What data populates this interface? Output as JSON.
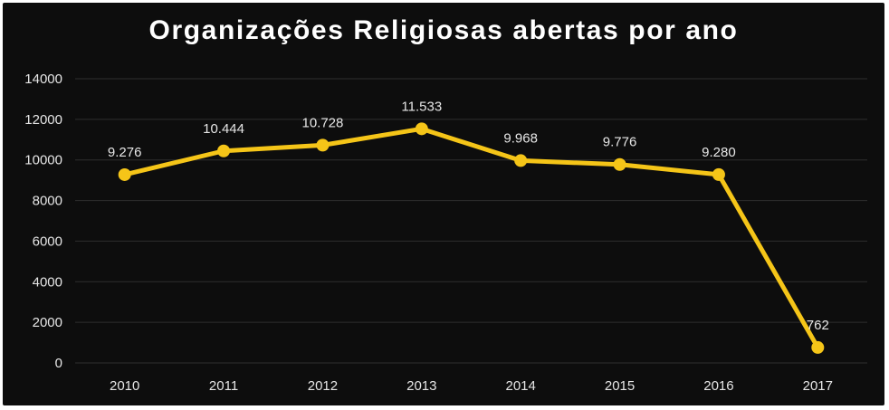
{
  "chart_data": {
    "type": "line",
    "title": "Organizações Religiosas abertas por ano",
    "categories": [
      "2010",
      "2011",
      "2012",
      "2013",
      "2014",
      "2015",
      "2016",
      "2017"
    ],
    "values": [
      9276,
      10444,
      10728,
      11533,
      9968,
      9776,
      9280,
      762
    ],
    "data_labels": [
      "9.276",
      "10.444",
      "10.728",
      "11.533",
      "9.968",
      "9.776",
      "9.280",
      "762"
    ],
    "y_ticks": [
      "0",
      "2000",
      "4000",
      "6000",
      "8000",
      "10000",
      "12000",
      "14000"
    ],
    "ylim": [
      0,
      14000
    ],
    "xlabel": "",
    "ylabel": "",
    "grid": true,
    "legend": "none",
    "colors": {
      "background": "#0d0d0d",
      "line": "#f5c518",
      "grid": "#2e2e2e",
      "text": "#e6e6e6",
      "title": "#ffffff"
    }
  }
}
